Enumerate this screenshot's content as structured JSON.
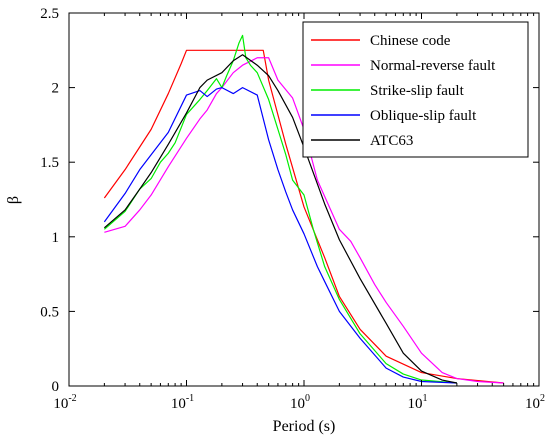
{
  "chart_data": {
    "type": "line",
    "title": "",
    "xlabel": "Period (s)",
    "ylabel": "β",
    "xscale": "log",
    "xlim": [
      0.01,
      100
    ],
    "ylim": [
      0,
      2.5
    ],
    "x_tick_labels": [
      {
        "base": "10",
        "exp": "-2",
        "value": 0.01
      },
      {
        "base": "10",
        "exp": "-1",
        "value": 0.1
      },
      {
        "base": "10",
        "exp": "0",
        "value": 1
      },
      {
        "base": "10",
        "exp": "1",
        "value": 10
      },
      {
        "base": "10",
        "exp": "2",
        "value": 100
      }
    ],
    "y_tick_labels": [
      "0",
      "0.5",
      "1",
      "1.5",
      "2",
      "2.5"
    ],
    "y_tick_values": [
      0,
      0.5,
      1,
      1.5,
      2,
      2.5
    ],
    "grid": false,
    "legend_position": "top-right",
    "series": [
      {
        "name": "Chinese code",
        "color": "#ff0000",
        "points": [
          [
            0.02,
            1.26
          ],
          [
            0.03,
            1.45
          ],
          [
            0.05,
            1.72
          ],
          [
            0.07,
            1.96
          ],
          [
            0.09,
            2.16
          ],
          [
            0.1,
            2.25
          ],
          [
            0.2,
            2.25
          ],
          [
            0.3,
            2.25
          ],
          [
            0.45,
            2.25
          ],
          [
            0.5,
            2.05
          ],
          [
            0.7,
            1.62
          ],
          [
            1,
            1.2
          ],
          [
            1.5,
            0.86
          ],
          [
            2,
            0.6
          ],
          [
            3,
            0.38
          ],
          [
            5,
            0.2
          ],
          [
            10,
            0.09
          ],
          [
            20,
            0.05
          ],
          [
            50,
            0.02
          ]
        ]
      },
      {
        "name": "Normal-reverse fault",
        "color": "#ff00ff",
        "points": [
          [
            0.02,
            1.03
          ],
          [
            0.03,
            1.07
          ],
          [
            0.04,
            1.18
          ],
          [
            0.05,
            1.28
          ],
          [
            0.07,
            1.47
          ],
          [
            0.1,
            1.66
          ],
          [
            0.13,
            1.79
          ],
          [
            0.15,
            1.85
          ],
          [
            0.18,
            1.96
          ],
          [
            0.2,
            2.0
          ],
          [
            0.25,
            2.1
          ],
          [
            0.3,
            2.15
          ],
          [
            0.4,
            2.2
          ],
          [
            0.5,
            2.2
          ],
          [
            0.6,
            2.05
          ],
          [
            0.8,
            1.93
          ],
          [
            1,
            1.72
          ],
          [
            1.3,
            1.38
          ],
          [
            1.5,
            1.27
          ],
          [
            2,
            1.05
          ],
          [
            2.5,
            0.97
          ],
          [
            3,
            0.86
          ],
          [
            4,
            0.68
          ],
          [
            5,
            0.56
          ],
          [
            7,
            0.4
          ],
          [
            10,
            0.22
          ],
          [
            15,
            0.09
          ],
          [
            20,
            0.05
          ],
          [
            30,
            0.03
          ],
          [
            50,
            0.02
          ]
        ]
      },
      {
        "name": "Strike-slip fault",
        "color": "#00ee00",
        "points": [
          [
            0.02,
            1.05
          ],
          [
            0.03,
            1.17
          ],
          [
            0.04,
            1.32
          ],
          [
            0.05,
            1.39
          ],
          [
            0.06,
            1.5
          ],
          [
            0.07,
            1.56
          ],
          [
            0.08,
            1.63
          ],
          [
            0.1,
            1.82
          ],
          [
            0.13,
            1.92
          ],
          [
            0.15,
            1.98
          ],
          [
            0.18,
            2.06
          ],
          [
            0.2,
            2.0
          ],
          [
            0.22,
            2.08
          ],
          [
            0.25,
            2.18
          ],
          [
            0.28,
            2.3
          ],
          [
            0.3,
            2.35
          ],
          [
            0.32,
            2.2
          ],
          [
            0.35,
            2.15
          ],
          [
            0.4,
            2.1
          ],
          [
            0.5,
            1.92
          ],
          [
            0.6,
            1.72
          ],
          [
            0.7,
            1.55
          ],
          [
            0.8,
            1.38
          ],
          [
            1,
            1.28
          ],
          [
            1.2,
            1.05
          ],
          [
            1.5,
            0.8
          ],
          [
            2,
            0.58
          ],
          [
            3,
            0.35
          ],
          [
            5,
            0.15
          ],
          [
            7,
            0.08
          ],
          [
            10,
            0.04
          ],
          [
            20,
            0.02
          ]
        ]
      },
      {
        "name": "Oblique-slip fault",
        "color": "#0000ff",
        "points": [
          [
            0.02,
            1.1
          ],
          [
            0.03,
            1.29
          ],
          [
            0.04,
            1.45
          ],
          [
            0.05,
            1.55
          ],
          [
            0.07,
            1.7
          ],
          [
            0.1,
            1.95
          ],
          [
            0.13,
            1.98
          ],
          [
            0.15,
            1.94
          ],
          [
            0.18,
            1.99
          ],
          [
            0.2,
            2.0
          ],
          [
            0.25,
            1.96
          ],
          [
            0.3,
            2.0
          ],
          [
            0.4,
            1.95
          ],
          [
            0.5,
            1.65
          ],
          [
            0.6,
            1.45
          ],
          [
            0.7,
            1.3
          ],
          [
            0.8,
            1.18
          ],
          [
            1,
            1.02
          ],
          [
            1.3,
            0.8
          ],
          [
            1.5,
            0.7
          ],
          [
            2,
            0.5
          ],
          [
            3,
            0.32
          ],
          [
            5,
            0.12
          ],
          [
            7,
            0.06
          ],
          [
            10,
            0.03
          ],
          [
            20,
            0.02
          ]
        ]
      },
      {
        "name": "ATC63",
        "color": "#000000",
        "points": [
          [
            0.02,
            1.06
          ],
          [
            0.03,
            1.18
          ],
          [
            0.04,
            1.32
          ],
          [
            0.05,
            1.43
          ],
          [
            0.07,
            1.62
          ],
          [
            0.1,
            1.83
          ],
          [
            0.13,
            2.0
          ],
          [
            0.15,
            2.05
          ],
          [
            0.2,
            2.1
          ],
          [
            0.25,
            2.18
          ],
          [
            0.3,
            2.22
          ],
          [
            0.4,
            2.15
          ],
          [
            0.5,
            2.08
          ],
          [
            0.6,
            1.98
          ],
          [
            0.8,
            1.8
          ],
          [
            1,
            1.6
          ],
          [
            1.5,
            1.22
          ],
          [
            2,
            0.98
          ],
          [
            3,
            0.72
          ],
          [
            5,
            0.42
          ],
          [
            7,
            0.22
          ],
          [
            10,
            0.1
          ],
          [
            15,
            0.04
          ],
          [
            20,
            0.02
          ]
        ]
      }
    ]
  }
}
